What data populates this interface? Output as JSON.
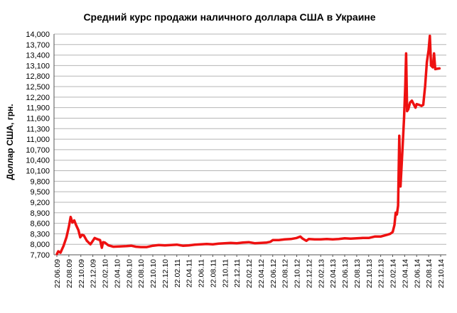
{
  "chart_data": {
    "type": "line",
    "title": "Средний курс продажи наличного доллара США в Украине",
    "ylabel": "Доллар США, грн.",
    "xlabel": "",
    "ylim": [
      7.7,
      14.0
    ],
    "grid": true,
    "color": "#ee1111",
    "yticks": [
      "7,700",
      "8,000",
      "8,300",
      "8,600",
      "8,900",
      "9,200",
      "9,500",
      "9,800",
      "10,100",
      "10,400",
      "10,700",
      "11,000",
      "11,300",
      "11,600",
      "11,900",
      "12,200",
      "12,500",
      "12,800",
      "13,100",
      "13,400",
      "13,700",
      "14,000"
    ],
    "x_tick_labels": [
      "22.06.09",
      "22.08.09",
      "22.10.09",
      "22.12.09",
      "22.02.10",
      "22.04.10",
      "22.06.10",
      "22.08.10",
      "22.10.10",
      "22.12.10",
      "22.02.11",
      "22.04.11",
      "22.06.11",
      "22.08.11",
      "22.10.11",
      "22.12.11",
      "22.02.12",
      "22.04.12",
      "22.06.12",
      "22.08.12",
      "22.10.12",
      "22.12.12",
      "22.02.13",
      "22.04.13",
      "22.06.13",
      "22.08.13",
      "22.10.13",
      "22.12.13",
      "22.02.14",
      "22.04.14",
      "22.06.14",
      "22.08.14",
      "22.10.14"
    ],
    "series": [
      {
        "values": [
          [
            0,
            7.72
          ],
          [
            0.12,
            7.8
          ],
          [
            0.3,
            7.76
          ],
          [
            0.55,
            7.95
          ],
          [
            0.8,
            8.2
          ],
          [
            1.0,
            8.5
          ],
          [
            1.15,
            8.78
          ],
          [
            1.3,
            8.62
          ],
          [
            1.45,
            8.68
          ],
          [
            1.6,
            8.55
          ],
          [
            1.8,
            8.4
          ],
          [
            1.95,
            8.2
          ],
          [
            2.1,
            8.27
          ],
          [
            2.25,
            8.25
          ],
          [
            2.5,
            8.1
          ],
          [
            2.8,
            8.0
          ],
          [
            3.0,
            8.1
          ],
          [
            3.15,
            8.18
          ],
          [
            3.35,
            8.15
          ],
          [
            3.6,
            8.12
          ],
          [
            3.75,
            7.9
          ],
          [
            3.85,
            8.06
          ],
          [
            4.0,
            8.05
          ],
          [
            4.3,
            7.97
          ],
          [
            4.7,
            7.93
          ],
          [
            5.2,
            7.94
          ],
          [
            5.8,
            7.95
          ],
          [
            6.2,
            7.96
          ],
          [
            6.6,
            7.93
          ],
          [
            7.0,
            7.92
          ],
          [
            7.5,
            7.92
          ],
          [
            8.0,
            7.96
          ],
          [
            8.5,
            7.98
          ],
          [
            9.0,
            7.97
          ],
          [
            9.5,
            7.98
          ],
          [
            10.0,
            7.99
          ],
          [
            10.5,
            7.96
          ],
          [
            11.0,
            7.97
          ],
          [
            11.5,
            7.99
          ],
          [
            12.0,
            8.0
          ],
          [
            12.5,
            8.01
          ],
          [
            13.0,
            8.0
          ],
          [
            13.5,
            8.02
          ],
          [
            14.0,
            8.03
          ],
          [
            14.5,
            8.04
          ],
          [
            15.0,
            8.03
          ],
          [
            15.5,
            8.05
          ],
          [
            16.0,
            8.06
          ],
          [
            16.5,
            8.03
          ],
          [
            17.0,
            8.04
          ],
          [
            17.5,
            8.05
          ],
          [
            17.8,
            8.07
          ],
          [
            18.0,
            8.12
          ],
          [
            18.5,
            8.12
          ],
          [
            19.0,
            8.14
          ],
          [
            19.5,
            8.15
          ],
          [
            20.0,
            8.18
          ],
          [
            20.3,
            8.22
          ],
          [
            20.5,
            8.16
          ],
          [
            20.8,
            8.1
          ],
          [
            21.0,
            8.15
          ],
          [
            21.5,
            8.14
          ],
          [
            22.0,
            8.14
          ],
          [
            22.5,
            8.15
          ],
          [
            23.0,
            8.14
          ],
          [
            23.5,
            8.15
          ],
          [
            24.0,
            8.17
          ],
          [
            24.5,
            8.16
          ],
          [
            25.0,
            8.17
          ],
          [
            25.5,
            8.18
          ],
          [
            26.0,
            8.18
          ],
          [
            26.5,
            8.22
          ],
          [
            27.0,
            8.22
          ],
          [
            27.5,
            8.27
          ],
          [
            27.8,
            8.3
          ],
          [
            28.0,
            8.35
          ],
          [
            28.15,
            8.55
          ],
          [
            28.25,
            8.9
          ],
          [
            28.35,
            8.85
          ],
          [
            28.45,
            9.1
          ],
          [
            28.55,
            11.1
          ],
          [
            28.65,
            9.65
          ],
          [
            28.8,
            10.6
          ],
          [
            28.95,
            11.6
          ],
          [
            29.05,
            12.5
          ],
          [
            29.12,
            13.45
          ],
          [
            29.2,
            11.8
          ],
          [
            29.3,
            11.85
          ],
          [
            29.45,
            12.05
          ],
          [
            29.6,
            12.1
          ],
          [
            29.75,
            12.0
          ],
          [
            29.9,
            11.9
          ],
          [
            30.0,
            12.0
          ],
          [
            30.2,
            11.98
          ],
          [
            30.4,
            11.95
          ],
          [
            30.55,
            11.98
          ],
          [
            30.7,
            12.5
          ],
          [
            30.85,
            13.2
          ],
          [
            31.0,
            13.55
          ],
          [
            31.1,
            13.95
          ],
          [
            31.2,
            13.1
          ],
          [
            31.35,
            13.05
          ],
          [
            31.45,
            13.45
          ],
          [
            31.55,
            13.0
          ],
          [
            31.7,
            13.01
          ],
          [
            31.9,
            13.02
          ]
        ]
      }
    ]
  }
}
